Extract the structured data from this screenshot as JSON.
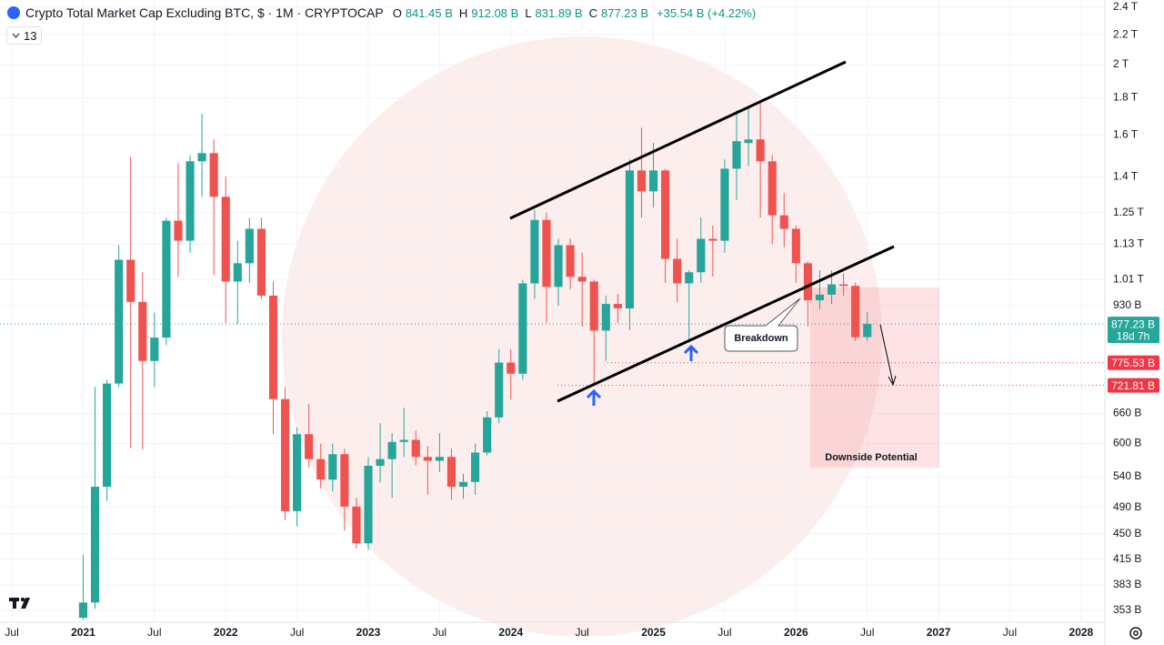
{
  "header": {
    "title": "Crypto Total Market Cap Excluding BTC, $ · 1M · CRYPTOCAP",
    "ohlc": [
      {
        "key": "O",
        "text": "841.45 B"
      },
      {
        "key": "H",
        "text": "912.08 B"
      },
      {
        "key": "L",
        "text": "831.89 B"
      },
      {
        "key": "C",
        "text": "877.23 B"
      }
    ],
    "change": "+35.54 B (+4.22%)",
    "indicator": "13"
  },
  "chart_data": {
    "type": "candlestick",
    "log_scale": true,
    "grid": true,
    "up_color": "#26a69a",
    "down_color": "#ef5350",
    "x": [
      "2021-01",
      "2021-02",
      "2021-03",
      "2021-04",
      "2021-05",
      "2021-06",
      "2021-07",
      "2021-08",
      "2021-09",
      "2021-10",
      "2021-11",
      "2021-12",
      "2022-01",
      "2022-02",
      "2022-03",
      "2022-04",
      "2022-05",
      "2022-06",
      "2022-07",
      "2022-08",
      "2022-09",
      "2022-10",
      "2022-11",
      "2022-12",
      "2023-01",
      "2023-02",
      "2023-03",
      "2023-04",
      "2023-05",
      "2023-06",
      "2023-07",
      "2023-08",
      "2023-09",
      "2023-10",
      "2023-11",
      "2023-12",
      "2024-01",
      "2024-02",
      "2024-03",
      "2024-04",
      "2024-05",
      "2024-06",
      "2024-07",
      "2024-08",
      "2024-09",
      "2024-10",
      "2024-11",
      "2024-12",
      "2025-01",
      "2025-02",
      "2025-03",
      "2025-04",
      "2025-05",
      "2025-06",
      "2025-07",
      "2025-08",
      "2025-09",
      "2025-10",
      "2025-11",
      "2025-12",
      "2026-01",
      "2026-02",
      "2026-03",
      "2026-04",
      "2026-05",
      "2026-06",
      "2026-07"
    ],
    "open": [
      345,
      362,
      523,
      726,
      1076,
      941,
      780,
      840,
      1218,
      1143,
      1471,
      1510,
      1314,
      1004,
      1064,
      1187,
      960,
      691,
      484,
      618,
      571,
      535,
      580,
      491,
      437,
      559,
      571,
      603,
      607,
      575,
      568,
      575,
      523,
      531,
      583,
      652,
      776,
      749,
      998,
      1221,
      987,
      1127,
      1019,
      1004,
      859,
      935,
      922,
      1429,
      1337,
      1429,
      1079,
      998,
      1034,
      1150,
      1143,
      1437,
      1559,
      1577,
      1471,
      1239,
      1187,
      1064,
      946,
      963,
      995,
      990,
      841.45
    ],
    "high": [
      421,
      718,
      735,
      1127,
      1493,
      1034,
      909,
      1229,
      1462,
      1500,
      1710,
      1577,
      1400,
      1143,
      1229,
      1229,
      1004,
      718,
      632,
      680,
      600,
      600,
      590,
      505,
      575,
      640,
      620,
      672,
      625,
      595,
      620,
      590,
      545,
      600,
      665,
      810,
      810,
      1010,
      1260,
      1250,
      1150,
      1150,
      1100,
      1010,
      960,
      965,
      1480,
      1637,
      1560,
      1437,
      1150,
      1040,
      1230,
      1200,
      1480,
      1730,
      1745,
      1771,
      1500,
      1330,
      1200,
      1070,
      1040,
      1040,
      1030,
      1000,
      912.08
    ],
    "low": [
      343,
      355,
      500,
      718,
      591,
      589,
      718,
      820,
      1019,
      1100,
      1314,
      1025,
      880,
      877,
      1000,
      949,
      618,
      470,
      461,
      556,
      520,
      515,
      455,
      430,
      428,
      530,
      505,
      575,
      560,
      510,
      548,
      502,
      503,
      510,
      578,
      640,
      690,
      735,
      950,
      880,
      930,
      980,
      870,
      725,
      780,
      880,
      860,
      1230,
      1270,
      1000,
      940,
      828,
      1000,
      1020,
      1100,
      1300,
      1450,
      1230,
      1130,
      1120,
      1000,
      870,
      920,
      935,
      960,
      832,
      831.89
    ],
    "close": [
      362,
      523,
      726,
      1076,
      941,
      780,
      840,
      1218,
      1143,
      1471,
      1510,
      1314,
      1004,
      1064,
      1187,
      960,
      691,
      484,
      618,
      571,
      535,
      580,
      491,
      437,
      559,
      571,
      603,
      607,
      575,
      568,
      575,
      523,
      531,
      583,
      652,
      776,
      749,
      998,
      1221,
      987,
      1127,
      1019,
      1004,
      859,
      935,
      922,
      1429,
      1337,
      1429,
      1079,
      998,
      1034,
      1150,
      1143,
      1437,
      1568,
      1577,
      1471,
      1239,
      1187,
      1064,
      946,
      963,
      995,
      990,
      841,
      877.23
    ],
    "xlim": [
      "2020-06",
      "2028-03"
    ],
    "xticks": [
      {
        "value": "2020-07",
        "label": "Jul"
      },
      {
        "value": "2021-01",
        "label": "2021"
      },
      {
        "value": "2021-07",
        "label": "Jul"
      },
      {
        "value": "2022-01",
        "label": "2022"
      },
      {
        "value": "2022-07",
        "label": "Jul"
      },
      {
        "value": "2023-01",
        "label": "2023"
      },
      {
        "value": "2023-07",
        "label": "Jul"
      },
      {
        "value": "2024-01",
        "label": "2024"
      },
      {
        "value": "2024-07",
        "label": "Jul"
      },
      {
        "value": "2025-01",
        "label": "2025"
      },
      {
        "value": "2025-07",
        "label": "Jul"
      },
      {
        "value": "2026-01",
        "label": "2026"
      },
      {
        "value": "2026-07",
        "label": "Jul"
      },
      {
        "value": "2027-01",
        "label": "2027"
      },
      {
        "value": "2027-07",
        "label": "Jul"
      },
      {
        "value": "2028-01",
        "label": "2028"
      }
    ],
    "ylim": [
      341,
      2456
    ],
    "yticks": [
      {
        "value": 2400,
        "label": "2.4 T"
      },
      {
        "value": 2200,
        "label": "2.2 T"
      },
      {
        "value": 2000,
        "label": "2 T"
      },
      {
        "value": 1800,
        "label": "1.8 T"
      },
      {
        "value": 1600,
        "label": "1.6 T"
      },
      {
        "value": 1400,
        "label": "1.4 T"
      },
      {
        "value": 1250,
        "label": "1.25 T"
      },
      {
        "value": 1130,
        "label": "1.13 T"
      },
      {
        "value": 1010,
        "label": "1.01 T"
      },
      {
        "value": 930,
        "label": "930 B"
      },
      {
        "value": 660,
        "label": "660 B"
      },
      {
        "value": 600,
        "label": "600 B"
      },
      {
        "value": 540,
        "label": "540 B"
      },
      {
        "value": 490,
        "label": "490 B"
      },
      {
        "value": 450,
        "label": "450 B"
      },
      {
        "value": 415,
        "label": "415 B"
      },
      {
        "value": 383,
        "label": "383 B"
      },
      {
        "value": 353,
        "label": "353 B"
      }
    ],
    "last_price": {
      "value": 877.23,
      "label": "877.23 B",
      "countdown": "18d 7h",
      "color": "#26a69a"
    },
    "levels": [
      {
        "value": 775.53,
        "label": "775.53 B",
        "color": "#f23645"
      },
      {
        "value": 721.81,
        "label": "721.81 B",
        "color": "#f23645"
      }
    ],
    "annotations": [
      "Breakdown",
      "Downside Potential"
    ]
  }
}
